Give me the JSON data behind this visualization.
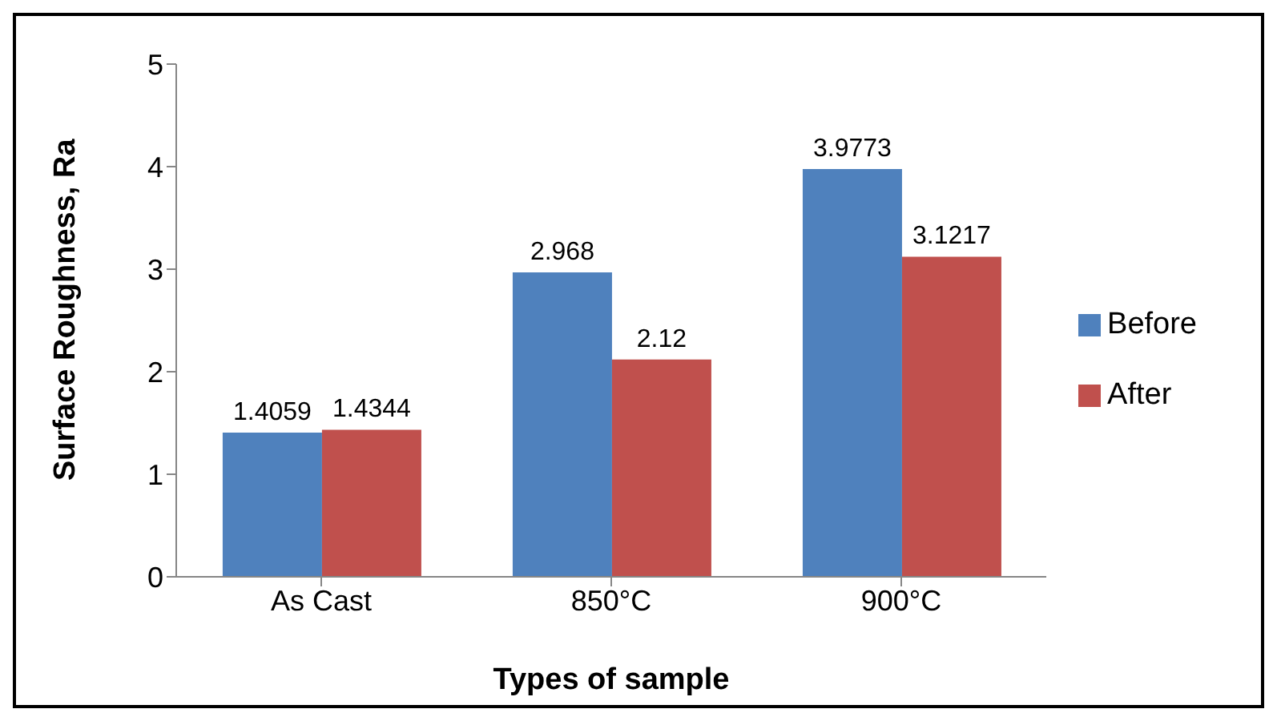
{
  "chart_data": {
    "type": "bar",
    "xlabel": "Types of sample",
    "ylabel": "Surface Roughness, Ra",
    "categories": [
      "As Cast",
      "850°C",
      "900°C"
    ],
    "series": [
      {
        "name": "Before",
        "color": "#4f81bd",
        "values": [
          1.4059,
          2.968,
          3.9773
        ]
      },
      {
        "name": "After",
        "color": "#c0504d",
        "values": [
          1.4344,
          2.12,
          3.1217
        ]
      }
    ],
    "ylim": [
      0,
      5
    ],
    "yticks": [
      0,
      1,
      2,
      3,
      4,
      5
    ],
    "grid": false,
    "legend": "right",
    "data_labels": true
  }
}
